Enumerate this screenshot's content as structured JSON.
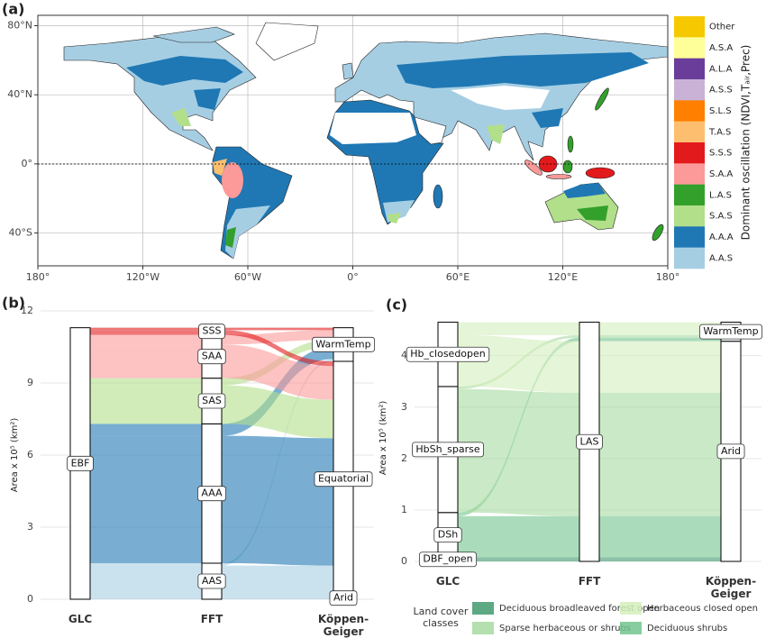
{
  "chart_data": [
    {
      "type": "map",
      "panel_label": "(a)",
      "xlim": [
        -180,
        180
      ],
      "ylim": [
        -59,
        86
      ],
      "xticks": [
        {
          "value": -180,
          "label": "180°"
        },
        {
          "value": -120,
          "label": "120°W"
        },
        {
          "value": -60,
          "label": "60°W"
        },
        {
          "value": 0,
          "label": "0°"
        },
        {
          "value": 60,
          "label": "60°E"
        },
        {
          "value": 120,
          "label": "120°E"
        },
        {
          "value": 180,
          "label": "180°"
        }
      ],
      "yticks": [
        {
          "value": 80,
          "label": "80°N"
        },
        {
          "value": 40,
          "label": "40°N"
        },
        {
          "value": 0,
          "label": "0°"
        },
        {
          "value": -40,
          "label": "40°S"
        }
      ],
      "grid": true,
      "legend_title": "Dominant oscillation (NDVI,Tₐᵢᵣ,Prec)",
      "categories": [
        "Other",
        "A.S.A",
        "A.L.A",
        "A.S.S",
        "S.L.S",
        "T.A.S",
        "S.S.S",
        "S.A.A",
        "L.A.S",
        "S.A.S",
        "A.A.A",
        "A.A.S"
      ],
      "colors": [
        "#f5c800",
        "#ffff99",
        "#6a3d9a",
        "#cab2d6",
        "#ff7f00",
        "#fdbf6f",
        "#e31a1c",
        "#fb9a99",
        "#33a02c",
        "#b2df8a",
        "#1f78b4",
        "#a6cee3"
      ]
    },
    {
      "type": "alluvial",
      "panel_label": "(b)",
      "ylabel": "Area x 10⁵ (km²)",
      "ylim": [
        0,
        12
      ],
      "yticks": [
        0,
        3,
        6,
        9,
        12
      ],
      "grid": true,
      "axes": [
        "GLC",
        "FFT",
        "Köppen-Geiger"
      ],
      "nodes": [
        [
          "EBF"
        ],
        [
          "AAS",
          "AAA",
          "SAS",
          "SAA",
          "SSS"
        ],
        [
          "Arid",
          "Equatorial",
          "WarmTemp"
        ]
      ],
      "flows": [
        {
          "nodes": [
            "EBF",
            "AAS",
            "Arid"
          ],
          "value": 0.1,
          "color": "#a6cee3"
        },
        {
          "nodes": [
            "EBF",
            "AAS",
            "Equatorial"
          ],
          "value": 1.3,
          "color": "#a6cee3"
        },
        {
          "nodes": [
            "EBF",
            "AAS",
            "WarmTemp"
          ],
          "value": 0.1,
          "color": "#a6cee3"
        },
        {
          "nodes": [
            "EBF",
            "AAA",
            "Equatorial"
          ],
          "value": 5.3,
          "color": "#1f78b4"
        },
        {
          "nodes": [
            "EBF",
            "AAA",
            "WarmTemp"
          ],
          "value": 0.5,
          "color": "#1f78b4"
        },
        {
          "nodes": [
            "EBF",
            "SAS",
            "Equatorial"
          ],
          "value": 1.6,
          "color": "#b2df8a"
        },
        {
          "nodes": [
            "EBF",
            "SAS",
            "WarmTemp"
          ],
          "value": 0.3,
          "color": "#b2df8a"
        },
        {
          "nodes": [
            "EBF",
            "SAA",
            "Equatorial"
          ],
          "value": 1.4,
          "color": "#fb9a99"
        },
        {
          "nodes": [
            "EBF",
            "SAA",
            "WarmTemp"
          ],
          "value": 0.4,
          "color": "#fb9a99"
        },
        {
          "nodes": [
            "EBF",
            "SSS",
            "Equatorial"
          ],
          "value": 0.2,
          "color": "#e31a1c"
        },
        {
          "nodes": [
            "EBF",
            "SSS",
            "WarmTemp"
          ],
          "value": 0.1,
          "color": "#e31a1c"
        }
      ]
    },
    {
      "type": "alluvial",
      "panel_label": "(c)",
      "ylabel": "Area x 10⁵ (km²)",
      "ylim": [
        0,
        4.8
      ],
      "yticks": [
        0,
        1,
        2,
        3,
        4
      ],
      "grid": true,
      "axes": [
        "GLC",
        "FFT",
        "Köppen-Geiger"
      ],
      "nodes": [
        [
          "DBF_open",
          "DSh",
          "HbSh_sparse",
          "Hb_closedopen"
        ],
        [
          "LAS"
        ],
        [
          "Arid",
          "WarmTemp"
        ]
      ],
      "flows": [
        {
          "nodes": [
            "DBF_open",
            "LAS",
            "Arid"
          ],
          "value": 0.08,
          "color": "#3f9a6e"
        },
        {
          "nodes": [
            "DSh",
            "LAS",
            "Arid"
          ],
          "value": 0.8,
          "color": "#72c48e"
        },
        {
          "nodes": [
            "DSh",
            "LAS",
            "WarmTemp"
          ],
          "value": 0.07,
          "color": "#72c48e"
        },
        {
          "nodes": [
            "HbSh_sparse",
            "LAS",
            "Arid"
          ],
          "value": 2.4,
          "color": "#a6dba0"
        },
        {
          "nodes": [
            "HbSh_sparse",
            "LAS",
            "WarmTemp"
          ],
          "value": 0.05,
          "color": "#a6dba0"
        },
        {
          "nodes": [
            "Hb_closedopen",
            "LAS",
            "Arid"
          ],
          "value": 1.0,
          "color": "#d4eebc"
        },
        {
          "nodes": [
            "Hb_closedopen",
            "LAS",
            "WarmTemp"
          ],
          "value": 0.25,
          "color": "#d4eebc"
        }
      ],
      "legend_title": "Land cover classes",
      "legend": [
        {
          "name": "Deciduous broadleaved forest open",
          "color": "#3f9a6e"
        },
        {
          "name": "Sparse herbaceous or shrubs",
          "color": "#a6dba0"
        },
        {
          "name": "Herbaceous closed open",
          "color": "#d4eebc"
        },
        {
          "name": "Deciduous shrubs",
          "color": "#72c48e"
        }
      ]
    }
  ]
}
